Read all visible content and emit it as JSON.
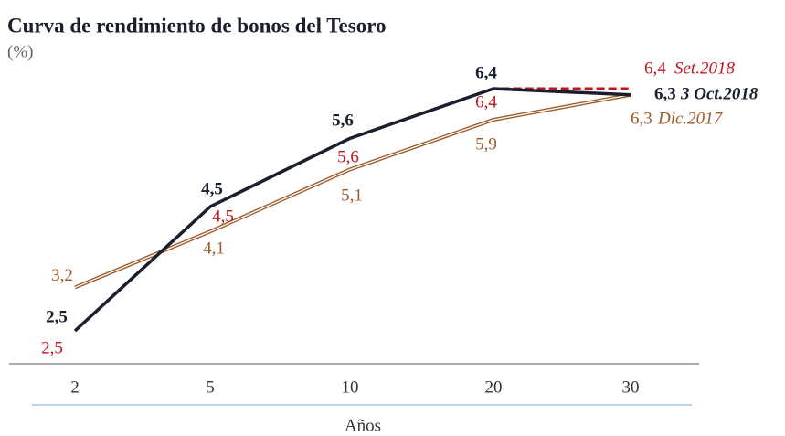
{
  "chart_data": {
    "type": "line",
    "title": "Curva de rendimiento de bonos del Tesoro",
    "subtitle": "(%)",
    "x_label": "Años",
    "categories": [
      "2",
      "5",
      "10",
      "20",
      "30"
    ],
    "series": [
      {
        "name": "Dic.2017",
        "color": "#9c5a2a",
        "line_style": "double",
        "values": [
          3.2,
          4.1,
          5.1,
          5.9,
          6.3
        ],
        "value_labels": [
          "3,2",
          "4,1",
          "5,1",
          "5,9",
          "6,3"
        ]
      },
      {
        "name": "Set.2018",
        "color": "#c0141e",
        "line_style": "dashed",
        "values": [
          2.5,
          4.5,
          5.6,
          6.4,
          6.4
        ],
        "value_labels": [
          "2,5",
          "4,5",
          "5,6",
          "6,4",
          "6,4"
        ]
      },
      {
        "name": "3 Oct.2018",
        "color": "#1a1f2e",
        "line_style": "solid",
        "values": [
          2.5,
          4.5,
          5.6,
          6.4,
          6.3
        ],
        "value_labels": [
          "2,5",
          "4,5",
          "5,6",
          "6,4",
          "6,3"
        ]
      }
    ]
  }
}
